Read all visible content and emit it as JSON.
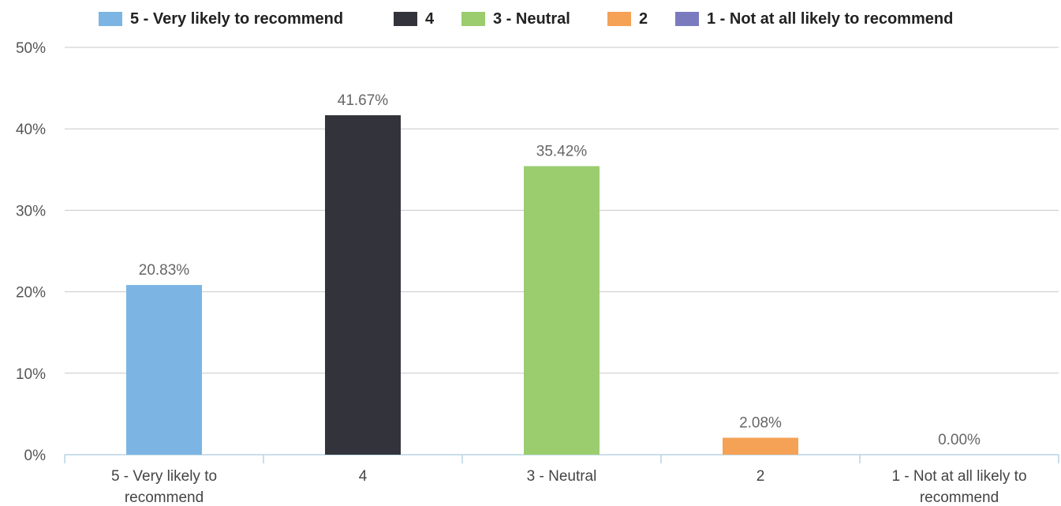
{
  "chart_data": {
    "type": "bar",
    "categories": [
      "5 - Very likely to recommend",
      "4",
      "3 - Neutral",
      "2",
      "1 - Not at all likely to recommend"
    ],
    "category_label_lines": [
      [
        "5 - Very likely to",
        "recommend"
      ],
      [
        "4"
      ],
      [
        "3 - Neutral"
      ],
      [
        "2"
      ],
      [
        "1 - Not at all likely to",
        "recommend"
      ]
    ],
    "values": [
      20.83,
      41.67,
      35.42,
      2.08,
      0.0
    ],
    "data_labels": [
      "20.83%",
      "41.67%",
      "35.42%",
      "2.08%",
      "0.00%"
    ],
    "colors": [
      "#7cb5e3",
      "#33343b",
      "#9bcd6f",
      "#f5a156",
      "#7a7bbf"
    ],
    "legend": [
      {
        "label": "5 - Very likely to recommend",
        "color": "#7cb5e3"
      },
      {
        "label": "4",
        "color": "#33343b"
      },
      {
        "label": "3 - Neutral",
        "color": "#9bcd6f"
      },
      {
        "label": "2",
        "color": "#f5a156"
      },
      {
        "label": "1 - Not at all likely to recommend",
        "color": "#7a7bbf"
      }
    ],
    "yticks": [
      "0%",
      "10%",
      "20%",
      "30%",
      "40%",
      "50%"
    ],
    "ylim": [
      0,
      50
    ],
    "legend_position": "top",
    "grid": true
  }
}
